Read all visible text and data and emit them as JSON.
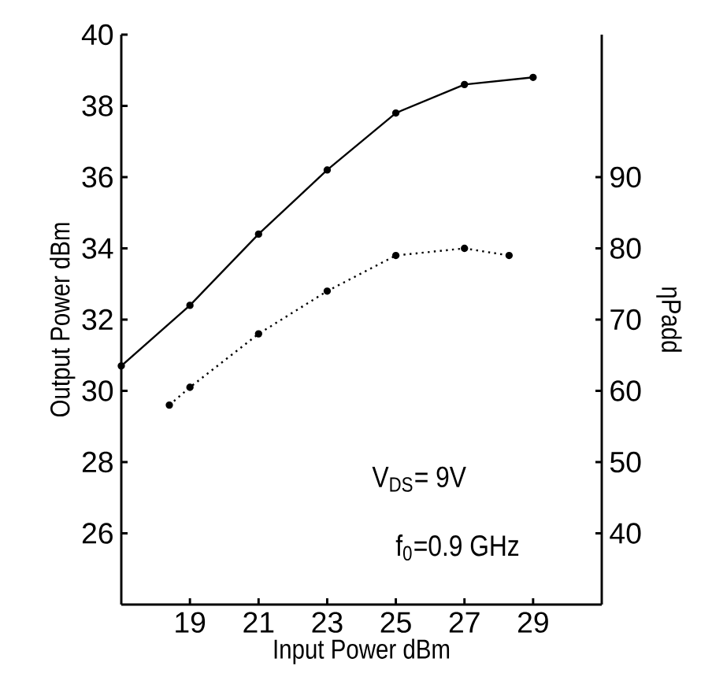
{
  "chart_data": {
    "type": "line",
    "xlabel": "Input Power dBm",
    "ylabel": "Output Power dBm",
    "y2label": "ηPadd",
    "xlim": [
      17,
      31
    ],
    "xticks": [
      19,
      21,
      23,
      25,
      27,
      29
    ],
    "ylim": [
      24,
      40
    ],
    "yticks": [
      26,
      28,
      30,
      32,
      34,
      36,
      38,
      40
    ],
    "y2lim": [
      30,
      110
    ],
    "y2ticks": [
      40,
      50,
      60,
      70,
      80,
      90
    ],
    "marker": "circle",
    "series": [
      {
        "x": [
          17,
          19,
          21,
          23,
          25,
          27,
          29
        ],
        "values": [
          30.7,
          32.4,
          34.4,
          36.2,
          37.8,
          38.6,
          38.8
        ],
        "color": "#000000",
        "line_style": "solid"
      },
      {
        "x": [
          18.4,
          19,
          21,
          23,
          25,
          27,
          28.3
        ],
        "values": [
          58,
          60.5,
          68,
          74,
          79,
          80,
          79
        ],
        "color": "#000000",
        "line_style": "dotted",
        "axis": "y2"
      }
    ],
    "annotations": [
      "V$_{DS}$= 9V",
      "f$_{0}$=0.9 GHz"
    ]
  }
}
